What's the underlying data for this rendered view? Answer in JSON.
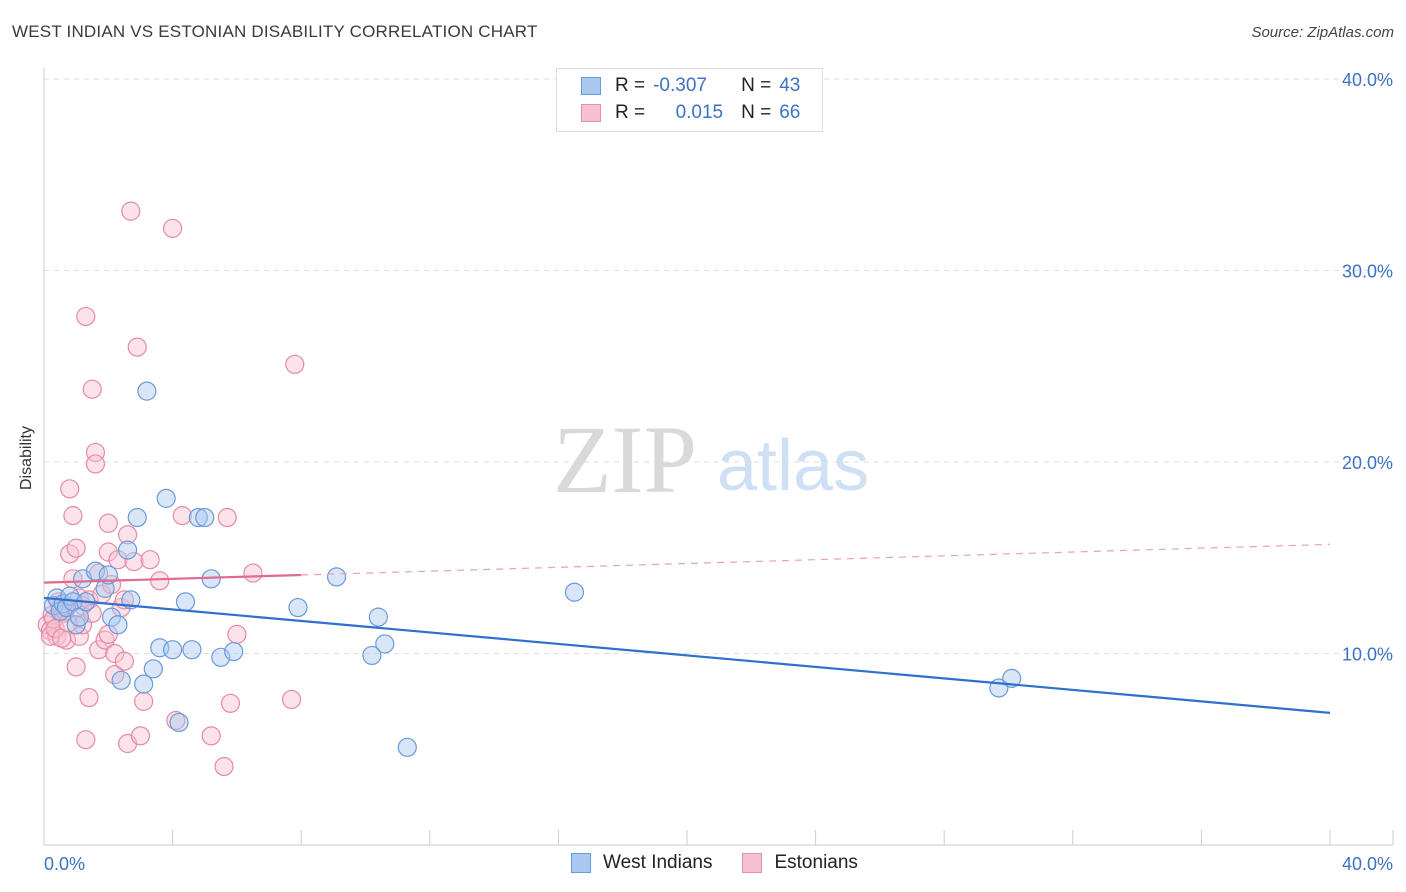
{
  "title": "WEST INDIAN VS ESTONIAN DISABILITY CORRELATION CHART",
  "source": "Source: ZipAtlas.com",
  "watermark": {
    "zip": "ZIP",
    "atlas": "atlas"
  },
  "legend": {
    "rows": [
      {
        "r_label": "R =",
        "r_value": "-0.307",
        "n_label": "N =",
        "n_value": "43",
        "color": "#a8c8f0",
        "border": "#6a9ad8"
      },
      {
        "r_label": "R =",
        "r_value": "0.015",
        "n_label": "N =",
        "n_value": "66",
        "color": "#f9c0d0",
        "border": "#e090a8"
      }
    ]
  },
  "bottom_legend": [
    {
      "label": "West Indians",
      "color": "#a8c8f0",
      "border": "#6a9ad8"
    },
    {
      "label": "Estonians",
      "color": "#f9c0d0",
      "border": "#e090a8"
    }
  ],
  "chart_data": {
    "type": "scatter",
    "title": "WEST INDIAN VS ESTONIAN DISABILITY CORRELATION CHART",
    "xlabel": "",
    "ylabel": "Disability",
    "xlim": [
      0,
      40
    ],
    "ylim": [
      0,
      40
    ],
    "x_tick_labels": [
      "0.0%",
      "40.0%"
    ],
    "y_tick_labels": [
      {
        "value": 10,
        "label": "10.0%"
      },
      {
        "value": 20,
        "label": "20.0%"
      },
      {
        "value": 30,
        "label": "30.0%"
      },
      {
        "value": 40,
        "label": "40.0%"
      }
    ],
    "grid": true,
    "series": [
      {
        "name": "West Indians",
        "color": "#6a9ad8",
        "fill": "rgba(168,200,240,0.45)",
        "trend": {
          "x": [
            0,
            40
          ],
          "y": [
            12.9,
            6.9
          ],
          "dashed_from": null
        },
        "points": [
          [
            0.3,
            12.5
          ],
          [
            0.4,
            12.9
          ],
          [
            0.5,
            12.2
          ],
          [
            0.6,
            12.6
          ],
          [
            0.7,
            12.4
          ],
          [
            0.8,
            13.0
          ],
          [
            0.9,
            12.7
          ],
          [
            1.0,
            11.5
          ],
          [
            1.1,
            11.9
          ],
          [
            1.2,
            13.9
          ],
          [
            1.3,
            12.7
          ],
          [
            1.6,
            14.3
          ],
          [
            1.9,
            13.4
          ],
          [
            2.0,
            14.1
          ],
          [
            2.1,
            11.9
          ],
          [
            2.3,
            11.5
          ],
          [
            2.4,
            8.6
          ],
          [
            2.6,
            15.4
          ],
          [
            2.7,
            12.8
          ],
          [
            2.9,
            17.1
          ],
          [
            3.1,
            8.4
          ],
          [
            3.2,
            23.7
          ],
          [
            3.4,
            9.2
          ],
          [
            3.6,
            10.3
          ],
          [
            3.8,
            18.1
          ],
          [
            4.0,
            10.2
          ],
          [
            4.2,
            6.4
          ],
          [
            4.4,
            12.7
          ],
          [
            4.6,
            10.2
          ],
          [
            4.8,
            17.1
          ],
          [
            5.0,
            17.1
          ],
          [
            5.2,
            13.9
          ],
          [
            5.5,
            9.8
          ],
          [
            5.9,
            10.1
          ],
          [
            7.9,
            12.4
          ],
          [
            9.1,
            14.0
          ],
          [
            10.2,
            9.9
          ],
          [
            10.4,
            11.9
          ],
          [
            10.6,
            10.5
          ],
          [
            11.3,
            5.1
          ],
          [
            16.5,
            13.2
          ],
          [
            29.7,
            8.2
          ],
          [
            30.1,
            8.7
          ]
        ]
      },
      {
        "name": "Estonians",
        "color": "#e68aa6",
        "fill": "rgba(249,192,208,0.45)",
        "trend": {
          "x": [
            0,
            40
          ],
          "y": [
            13.7,
            15.7
          ],
          "solid_until": 8
        },
        "points": [
          [
            0.1,
            11.5
          ],
          [
            0.2,
            11.2
          ],
          [
            0.25,
            12.0
          ],
          [
            0.3,
            11.8
          ],
          [
            0.4,
            10.9
          ],
          [
            0.5,
            12.4
          ],
          [
            0.6,
            12.1
          ],
          [
            0.7,
            10.7
          ],
          [
            0.8,
            18.6
          ],
          [
            0.8,
            15.2
          ],
          [
            0.9,
            17.2
          ],
          [
            0.9,
            13.9
          ],
          [
            1.0,
            15.5
          ],
          [
            1.0,
            9.3
          ],
          [
            1.1,
            10.9
          ],
          [
            1.1,
            12.9
          ],
          [
            1.2,
            12.5
          ],
          [
            1.2,
            11.5
          ],
          [
            1.3,
            27.6
          ],
          [
            1.3,
            5.5
          ],
          [
            1.4,
            12.8
          ],
          [
            1.4,
            7.7
          ],
          [
            1.5,
            23.8
          ],
          [
            1.5,
            12.1
          ],
          [
            1.6,
            20.5
          ],
          [
            1.6,
            19.9
          ],
          [
            1.7,
            14.2
          ],
          [
            1.7,
            10.2
          ],
          [
            1.8,
            13.1
          ],
          [
            1.9,
            10.7
          ],
          [
            2.0,
            15.3
          ],
          [
            2.0,
            16.8
          ],
          [
            2.0,
            11.0
          ],
          [
            2.1,
            13.6
          ],
          [
            2.2,
            10.0
          ],
          [
            2.2,
            8.9
          ],
          [
            2.3,
            14.9
          ],
          [
            2.4,
            12.4
          ],
          [
            2.5,
            12.8
          ],
          [
            2.5,
            9.6
          ],
          [
            2.6,
            5.3
          ],
          [
            2.6,
            16.2
          ],
          [
            2.7,
            33.1
          ],
          [
            2.8,
            14.8
          ],
          [
            2.9,
            26.0
          ],
          [
            3.0,
            5.7
          ],
          [
            3.1,
            7.5
          ],
          [
            3.3,
            14.9
          ],
          [
            3.6,
            13.8
          ],
          [
            4.0,
            32.2
          ],
          [
            4.1,
            6.5
          ],
          [
            4.3,
            17.2
          ],
          [
            5.2,
            5.7
          ],
          [
            5.6,
            4.1
          ],
          [
            5.7,
            17.1
          ],
          [
            5.8,
            7.4
          ],
          [
            6.0,
            11.0
          ],
          [
            6.5,
            14.2
          ],
          [
            7.7,
            7.6
          ],
          [
            7.8,
            25.1
          ],
          [
            0.2,
            10.9
          ],
          [
            0.35,
            11.3
          ],
          [
            0.45,
            12.7
          ],
          [
            0.55,
            10.8
          ],
          [
            0.65,
            12.2
          ],
          [
            0.75,
            11.6
          ]
        ]
      }
    ]
  }
}
